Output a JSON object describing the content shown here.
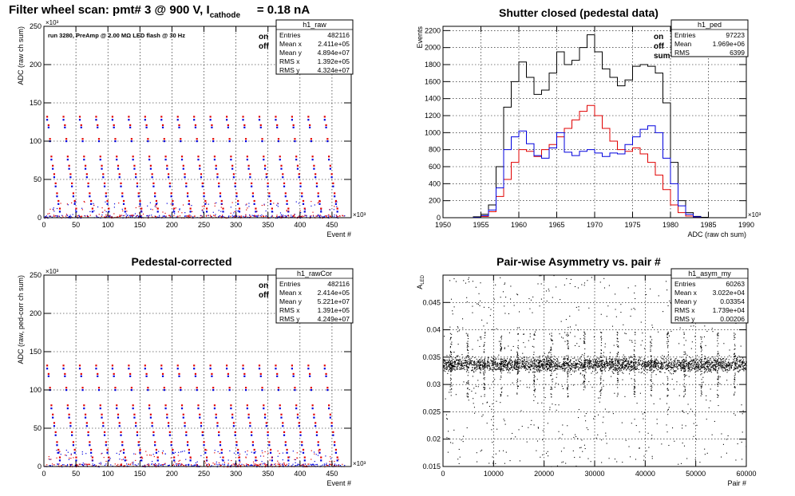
{
  "title": {
    "main": "Filter wheel scan: pmt#   3 @   900 V, I",
    "sub": "cathode",
    "suffix": "= 0.18 nA"
  },
  "colors": {
    "on": "#e00000",
    "off": "#0000dd",
    "sum": "#000000",
    "frame": "#000000"
  },
  "chart_data": [
    {
      "id": "raw",
      "type": "scatter",
      "title": "",
      "ylabel": "ADC (raw ch sum)",
      "xlabel": "Event #",
      "x_exponent": "×10³",
      "y_exponent": "×10³",
      "xlim": [
        0,
        480
      ],
      "ylim": [
        0,
        250
      ],
      "xticks": [
        0,
        50,
        100,
        150,
        200,
        250,
        300,
        350,
        400,
        450
      ],
      "yticks": [
        0,
        50,
        100,
        150,
        200,
        250
      ],
      "annotation": "run 3280, PreAmp @ 2.00 MΩ   LED flash @   30 Hz",
      "legend": [
        "on",
        "off"
      ],
      "stats": {
        "name": "h1_raw",
        "rows": [
          [
            "Entries",
            "482116"
          ],
          [
            "Mean x",
            "2.411e+05"
          ],
          [
            "Mean y",
            "4.894e+07"
          ],
          [
            "RMS x",
            "1.392e+05"
          ],
          [
            "RMS y",
            "4.324e+07"
          ]
        ]
      },
      "levels_on": [
        132,
        121,
        103,
        80,
        68,
        57,
        45,
        32,
        22,
        12
      ],
      "levels_off": [
        128,
        118,
        100,
        76,
        64,
        53,
        41,
        28,
        18,
        8
      ],
      "grid": true
    },
    {
      "id": "ped",
      "type": "line",
      "title": "Shutter closed (pedestal data)",
      "ylabel": "Events",
      "xlabel": "ADC (raw ch sum)",
      "x_exponent": "×10³",
      "xlim": [
        1950,
        1990
      ],
      "ylim": [
        0,
        2250
      ],
      "xticks": [
        1950,
        1955,
        1960,
        1965,
        1970,
        1975,
        1980,
        1985,
        1990
      ],
      "yticks": [
        0,
        200,
        400,
        600,
        800,
        1000,
        1200,
        1400,
        1600,
        1800,
        2000,
        2200
      ],
      "legend": [
        "on",
        "off",
        "sum"
      ],
      "stats": {
        "name": "h1_ped",
        "rows": [
          [
            "Entries",
            "97223"
          ],
          [
            "Mean",
            "1.969e+06"
          ],
          [
            "RMS",
            "6399"
          ]
        ]
      },
      "series": [
        {
          "name": "sum",
          "x": [
            1950,
            1951,
            1952,
            1953,
            1954,
            1955,
            1956,
            1957,
            1958,
            1959,
            1960,
            1961,
            1962,
            1963,
            1964,
            1965,
            1966,
            1967,
            1968,
            1969,
            1970,
            1971,
            1972,
            1973,
            1974,
            1975,
            1976,
            1977,
            1978,
            1979,
            1980,
            1981,
            1982,
            1983,
            1984,
            1985,
            1986,
            1987,
            1988,
            1989
          ],
          "y": [
            0,
            0,
            0,
            0,
            10,
            40,
            150,
            600,
            1300,
            1600,
            1830,
            1650,
            1450,
            1500,
            1700,
            1950,
            1800,
            1850,
            2000,
            2150,
            1950,
            1750,
            1650,
            1550,
            1620,
            1780,
            1800,
            1780,
            1700,
            1350,
            650,
            200,
            60,
            15,
            5,
            0,
            0,
            0,
            0,
            0
          ]
        },
        {
          "name": "on",
          "x": [
            1950,
            1951,
            1952,
            1953,
            1954,
            1955,
            1956,
            1957,
            1958,
            1959,
            1960,
            1961,
            1962,
            1963,
            1964,
            1965,
            1966,
            1967,
            1968,
            1969,
            1970,
            1971,
            1972,
            1973,
            1974,
            1975,
            1976,
            1977,
            1978,
            1979,
            1980,
            1981,
            1982,
            1983,
            1984,
            1985,
            1986,
            1987,
            1988,
            1989
          ],
          "y": [
            0,
            0,
            0,
            0,
            5,
            15,
            70,
            250,
            450,
            650,
            800,
            780,
            720,
            800,
            860,
            950,
            1050,
            1150,
            1250,
            1320,
            1200,
            1050,
            900,
            800,
            780,
            820,
            750,
            650,
            500,
            330,
            150,
            60,
            20,
            5,
            0,
            0,
            0,
            0,
            0,
            0
          ]
        },
        {
          "name": "off",
          "x": [
            1950,
            1951,
            1952,
            1953,
            1954,
            1955,
            1956,
            1957,
            1958,
            1959,
            1960,
            1961,
            1962,
            1963,
            1964,
            1965,
            1966,
            1967,
            1968,
            1969,
            1970,
            1971,
            1972,
            1973,
            1974,
            1975,
            1976,
            1977,
            1978,
            1979,
            1980,
            1981,
            1982,
            1983,
            1984,
            1985,
            1986,
            1987,
            1988,
            1989
          ],
          "y": [
            0,
            0,
            0,
            0,
            5,
            25,
            90,
            350,
            800,
            950,
            1020,
            870,
            730,
            700,
            820,
            1000,
            770,
            730,
            780,
            800,
            760,
            720,
            760,
            750,
            860,
            950,
            1040,
            1080,
            1000,
            700,
            400,
            140,
            40,
            10,
            0,
            0,
            0,
            0,
            0,
            0
          ]
        }
      ],
      "grid": true
    },
    {
      "id": "rawCor",
      "type": "scatter",
      "title": "Pedestal-corrected",
      "ylabel": "ADC (raw, ped-corr ch sum)",
      "xlabel": "Event #",
      "x_exponent": "×10³",
      "y_exponent": "×10³",
      "xlim": [
        0,
        480
      ],
      "ylim": [
        0,
        250
      ],
      "xticks": [
        0,
        50,
        100,
        150,
        200,
        250,
        300,
        350,
        400,
        450
      ],
      "yticks": [
        0,
        50,
        100,
        150,
        200,
        250
      ],
      "legend": [
        "on",
        "off"
      ],
      "stats": {
        "name": "h1_rawCor",
        "rows": [
          [
            "Entries",
            "482116"
          ],
          [
            "Mean x",
            "2.414e+05"
          ],
          [
            "Mean y",
            "5.221e+07"
          ],
          [
            "RMS x",
            "1.391e+05"
          ],
          [
            "RMS y",
            "4.249e+07"
          ]
        ]
      },
      "levels_on": [
        132,
        121,
        103,
        80,
        68,
        57,
        45,
        32,
        22,
        12
      ],
      "levels_off": [
        128,
        118,
        100,
        76,
        64,
        53,
        41,
        28,
        18,
        8
      ],
      "grid": true
    },
    {
      "id": "asym",
      "type": "scatter",
      "title": "Pair-wise Asymmetry vs. pair #",
      "ylabel": "A",
      "ylabel_sub": "LED",
      "xlabel": "Pair #",
      "xlim": [
        0,
        60000
      ],
      "ylim": [
        0.015,
        0.05
      ],
      "xticks": [
        0,
        10000,
        20000,
        30000,
        40000,
        50000,
        60000
      ],
      "yticks": [
        0.015,
        0.02,
        0.025,
        0.03,
        0.035,
        0.04,
        0.045
      ],
      "stats": {
        "name": "h1_asym_my",
        "rows": [
          [
            "Entries",
            "60263"
          ],
          [
            "Mean x",
            "3.022e+04"
          ],
          [
            "Mean y",
            "0.03354"
          ],
          [
            "RMS x",
            "1.739e+04"
          ],
          [
            "RMS y",
            "0.00206"
          ]
        ]
      },
      "band_center": 0.0337,
      "band_halfwidth": 0.0008,
      "grid": true
    }
  ]
}
